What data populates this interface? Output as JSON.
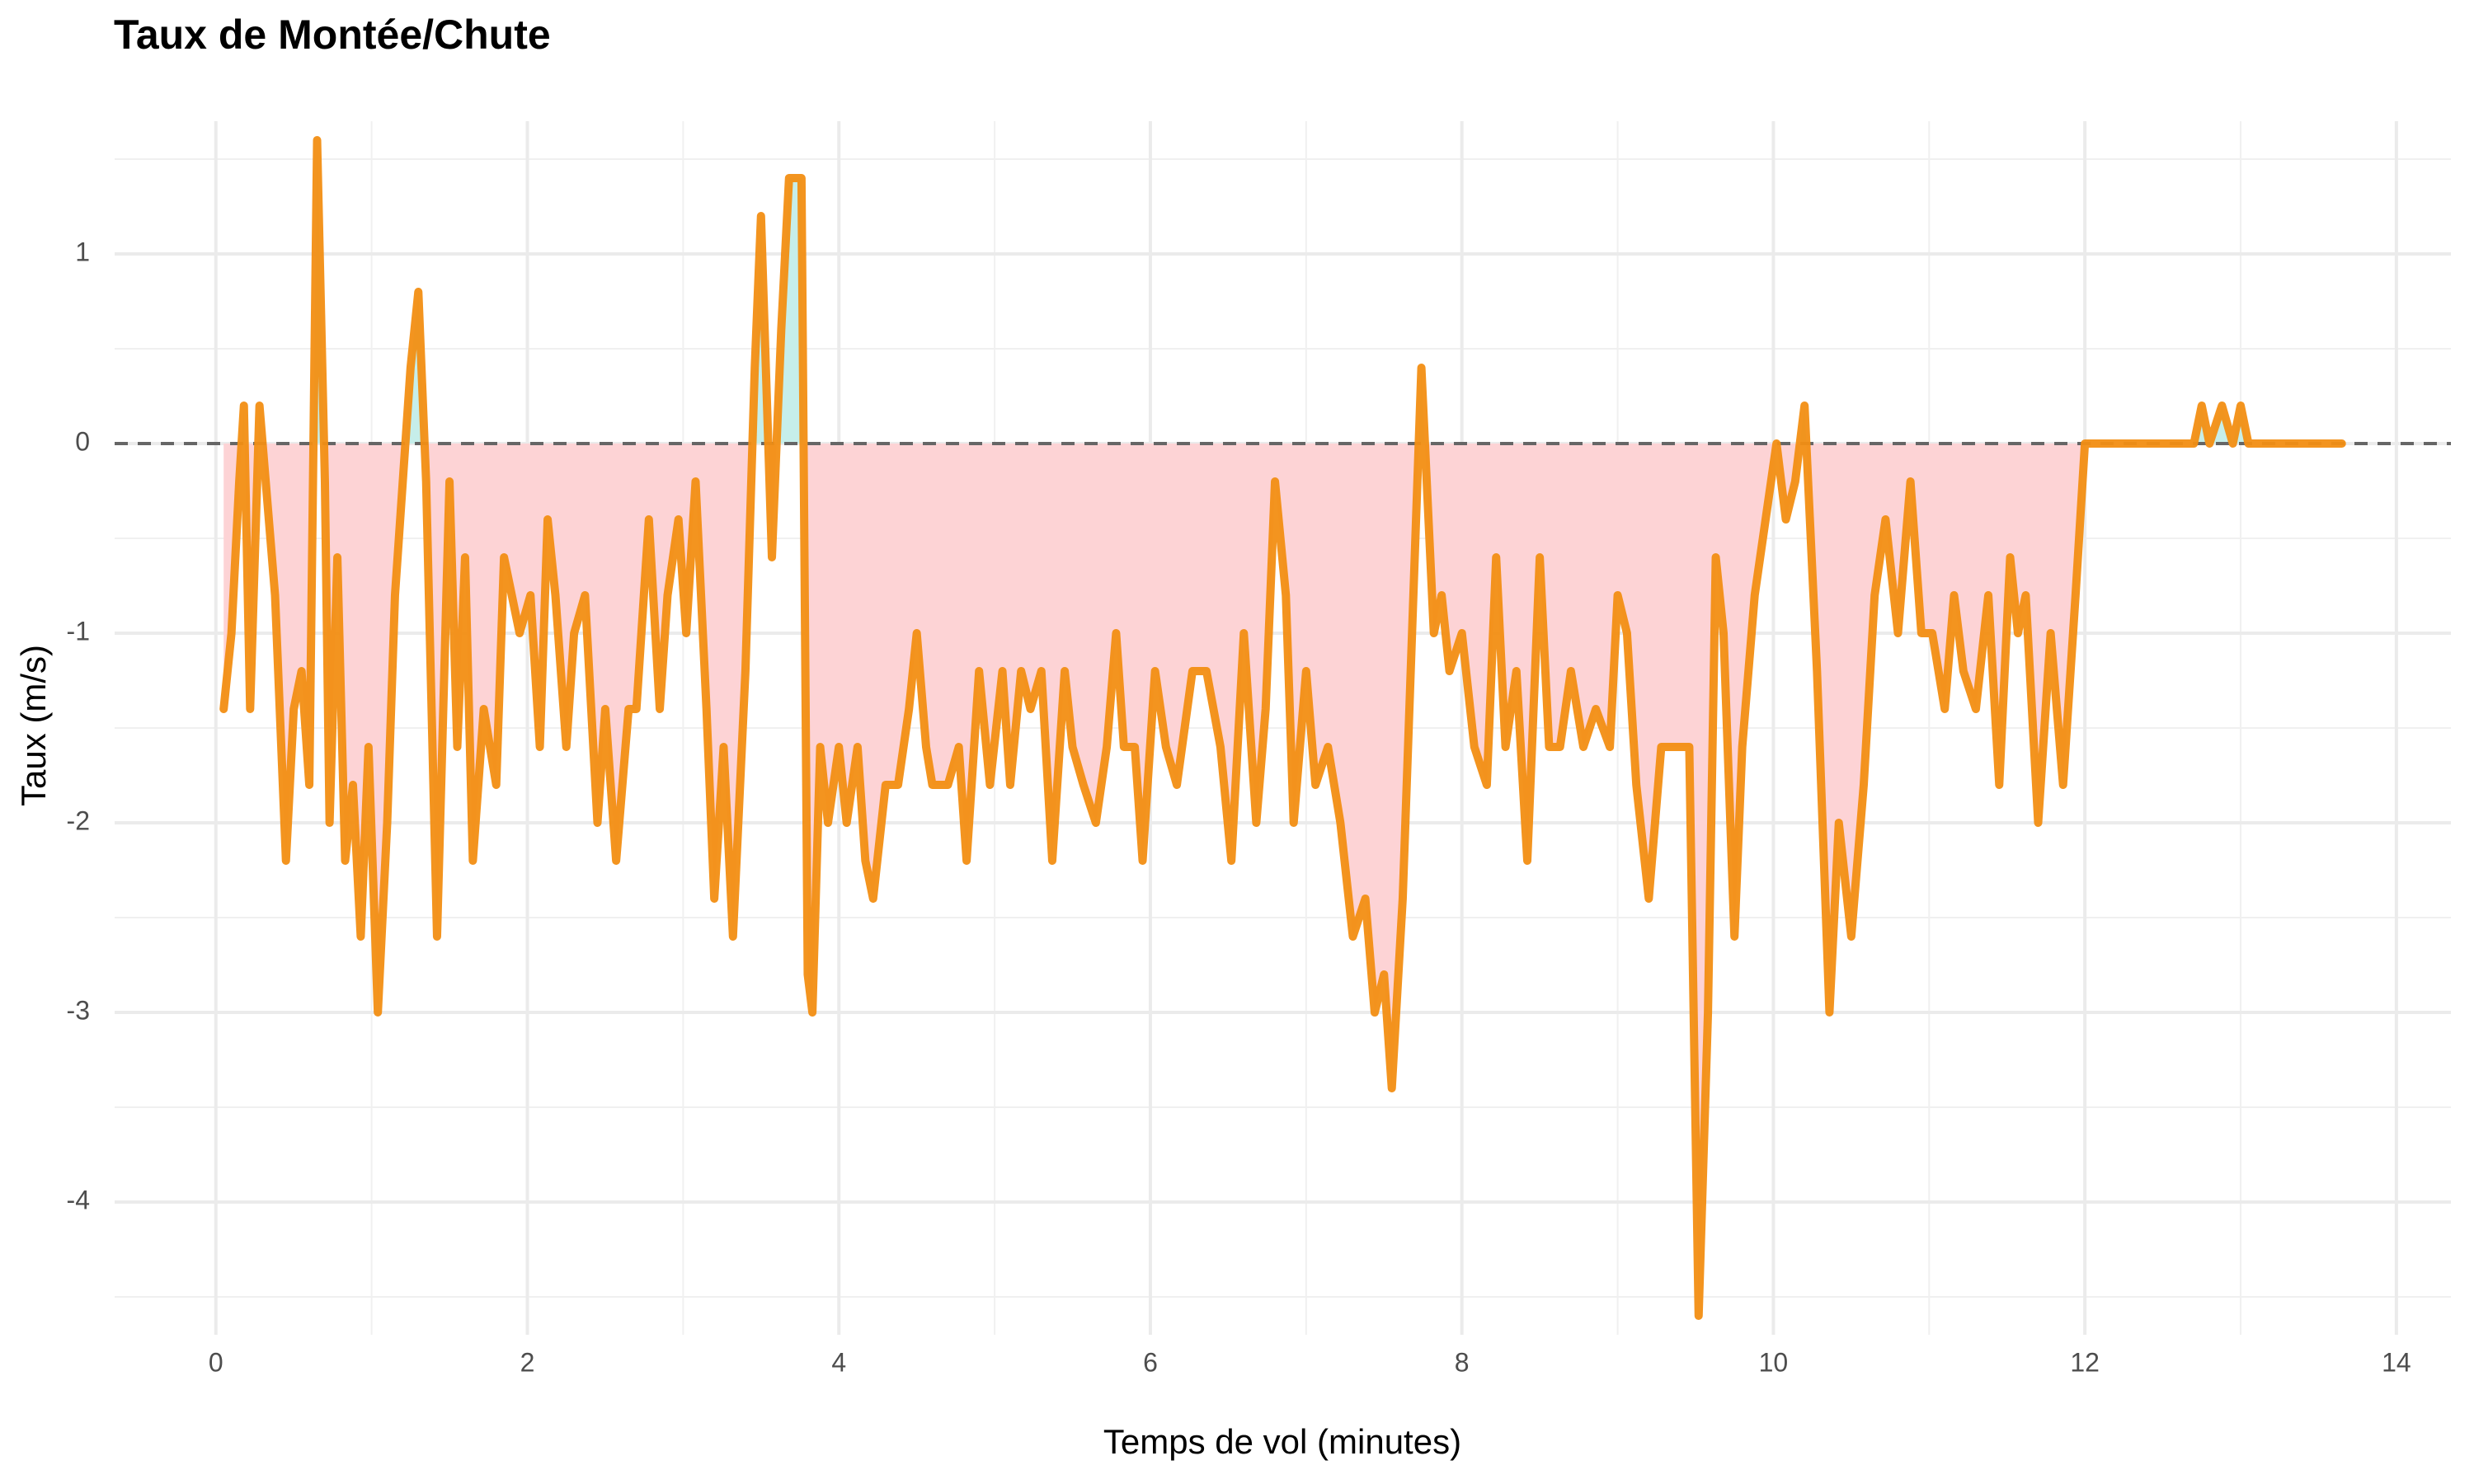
{
  "chart_data": {
    "type": "line",
    "title": "Taux de Montée/Chute",
    "x_label": "Temps de vol (minutes)",
    "y_label": "Taux (m/s)",
    "x": [
      0.05,
      0.1,
      0.15,
      0.18,
      0.22,
      0.28,
      0.32,
      0.38,
      0.45,
      0.5,
      0.55,
      0.6,
      0.65,
      0.7,
      0.73,
      0.78,
      0.83,
      0.88,
      0.93,
      0.98,
      1.04,
      1.1,
      1.15,
      1.2,
      1.25,
      1.3,
      1.35,
      1.42,
      1.5,
      1.55,
      1.6,
      1.65,
      1.72,
      1.8,
      1.85,
      1.9,
      1.95,
      2.02,
      2.08,
      2.13,
      2.18,
      2.25,
      2.3,
      2.37,
      2.45,
      2.5,
      2.57,
      2.65,
      2.7,
      2.78,
      2.85,
      2.9,
      2.97,
      3.02,
      3.08,
      3.15,
      3.2,
      3.26,
      3.32,
      3.4,
      3.46,
      3.5,
      3.57,
      3.63,
      3.68,
      3.76,
      3.8,
      3.83,
      3.88,
      3.93,
      4.0,
      4.05,
      4.12,
      4.17,
      4.22,
      4.3,
      4.38,
      4.45,
      4.5,
      4.56,
      4.6,
      4.7,
      4.77,
      4.82,
      4.9,
      4.97,
      5.05,
      5.1,
      5.17,
      5.23,
      5.3,
      5.37,
      5.45,
      5.5,
      5.57,
      5.65,
      5.72,
      5.78,
      5.83,
      5.9,
      5.95,
      6.03,
      6.1,
      6.17,
      6.27,
      6.36,
      6.45,
      6.52,
      6.6,
      6.68,
      6.74,
      6.8,
      6.87,
      6.92,
      7.0,
      7.06,
      7.14,
      7.22,
      7.3,
      7.38,
      7.44,
      7.5,
      7.55,
      7.62,
      7.68,
      7.74,
      7.82,
      7.87,
      7.92,
      8.0,
      8.08,
      8.16,
      8.22,
      8.28,
      8.35,
      8.42,
      8.5,
      8.56,
      8.63,
      8.7,
      8.78,
      8.86,
      8.95,
      9.0,
      9.06,
      9.12,
      9.2,
      9.28,
      9.38,
      9.46,
      9.52,
      9.58,
      9.63,
      9.68,
      9.75,
      9.8,
      9.88,
      9.95,
      10.02,
      10.08,
      10.14,
      10.2,
      10.28,
      10.36,
      10.42,
      10.5,
      10.58,
      10.65,
      10.72,
      10.8,
      10.88,
      10.95,
      11.02,
      11.1,
      11.16,
      11.22,
      11.3,
      11.38,
      11.45,
      11.52,
      11.57,
      11.62,
      11.7,
      11.78,
      11.86,
      11.94,
      12.0,
      12.4,
      12.7,
      12.75,
      12.8,
      12.88,
      12.95,
      13.0,
      13.05,
      13.65
    ],
    "values": [
      -1.4,
      -1.0,
      -0.2,
      0.2,
      -1.4,
      0.2,
      -0.2,
      -0.8,
      -2.2,
      -1.4,
      -1.2,
      -1.8,
      1.6,
      -0.2,
      -2.0,
      -0.6,
      -2.2,
      -1.8,
      -2.6,
      -1.6,
      -3.0,
      -2.0,
      -0.8,
      -0.2,
      0.4,
      0.8,
      -0.2,
      -2.6,
      -0.2,
      -1.6,
      -0.6,
      -2.2,
      -1.4,
      -1.8,
      -0.6,
      -0.8,
      -1.0,
      -0.8,
      -1.6,
      -0.4,
      -0.8,
      -1.6,
      -1.0,
      -0.8,
      -2.0,
      -1.4,
      -2.2,
      -1.4,
      -1.4,
      -0.4,
      -1.4,
      -0.8,
      -0.4,
      -1.0,
      -0.2,
      -1.4,
      -2.4,
      -1.6,
      -2.6,
      -1.2,
      0.4,
      1.2,
      -0.6,
      0.6,
      1.4,
      1.4,
      -2.8,
      -3.0,
      -1.6,
      -2.0,
      -1.6,
      -2.0,
      -1.6,
      -2.2,
      -2.4,
      -1.8,
      -1.8,
      -1.4,
      -1.0,
      -1.6,
      -1.8,
      -1.8,
      -1.6,
      -2.2,
      -1.2,
      -1.8,
      -1.2,
      -1.8,
      -1.2,
      -1.4,
      -1.2,
      -2.2,
      -1.2,
      -1.6,
      -1.8,
      -2.0,
      -1.6,
      -1.0,
      -1.6,
      -1.6,
      -2.2,
      -1.2,
      -1.6,
      -1.8,
      -1.2,
      -1.2,
      -1.6,
      -2.2,
      -1.0,
      -2.0,
      -1.4,
      -0.2,
      -0.8,
      -2.0,
      -1.2,
      -1.8,
      -1.6,
      -2.0,
      -2.6,
      -2.4,
      -3.0,
      -2.8,
      -3.4,
      -2.4,
      -1.0,
      0.4,
      -1.0,
      -0.8,
      -1.2,
      -1.0,
      -1.6,
      -1.8,
      -0.6,
      -1.6,
      -1.2,
      -2.2,
      -0.6,
      -1.6,
      -1.6,
      -1.2,
      -1.6,
      -1.4,
      -1.6,
      -0.8,
      -1.0,
      -1.8,
      -2.4,
      -1.6,
      -1.6,
      -1.6,
      -4.6,
      -3.0,
      -0.6,
      -1.0,
      -2.6,
      -1.6,
      -0.8,
      -0.4,
      0.0,
      -0.4,
      -0.2,
      0.2,
      -1.2,
      -3.0,
      -2.0,
      -2.6,
      -1.8,
      -0.8,
      -0.4,
      -1.0,
      -0.2,
      -1.0,
      -1.0,
      -1.4,
      -0.8,
      -1.2,
      -1.4,
      -0.8,
      -1.8,
      -0.6,
      -1.0,
      -0.8,
      -2.0,
      -1.0,
      -1.8,
      -0.8,
      0.0,
      0.0,
      0.0,
      0.2,
      0.0,
      0.2,
      0.0,
      0.2,
      0.0,
      0.0
    ],
    "color": "#f28e13",
    "positive_fill": "#c6eeea",
    "negative_fill": "#fdd3d5",
    "hline": 0,
    "xlim": [
      -0.65,
      14.35
    ],
    "ylim": [
      -4.7,
      1.7
    ],
    "xticks": [
      0,
      2,
      4,
      6,
      8,
      10,
      12,
      14
    ],
    "yticks": [
      -4,
      -3,
      -2,
      -1,
      0,
      1
    ],
    "xminor": [
      1,
      3,
      5,
      7,
      9,
      11,
      13
    ],
    "yminor": [
      -4.5,
      -3.5,
      -2.5,
      -1.5,
      -0.5,
      0.5,
      1.5
    ],
    "grid": true
  }
}
